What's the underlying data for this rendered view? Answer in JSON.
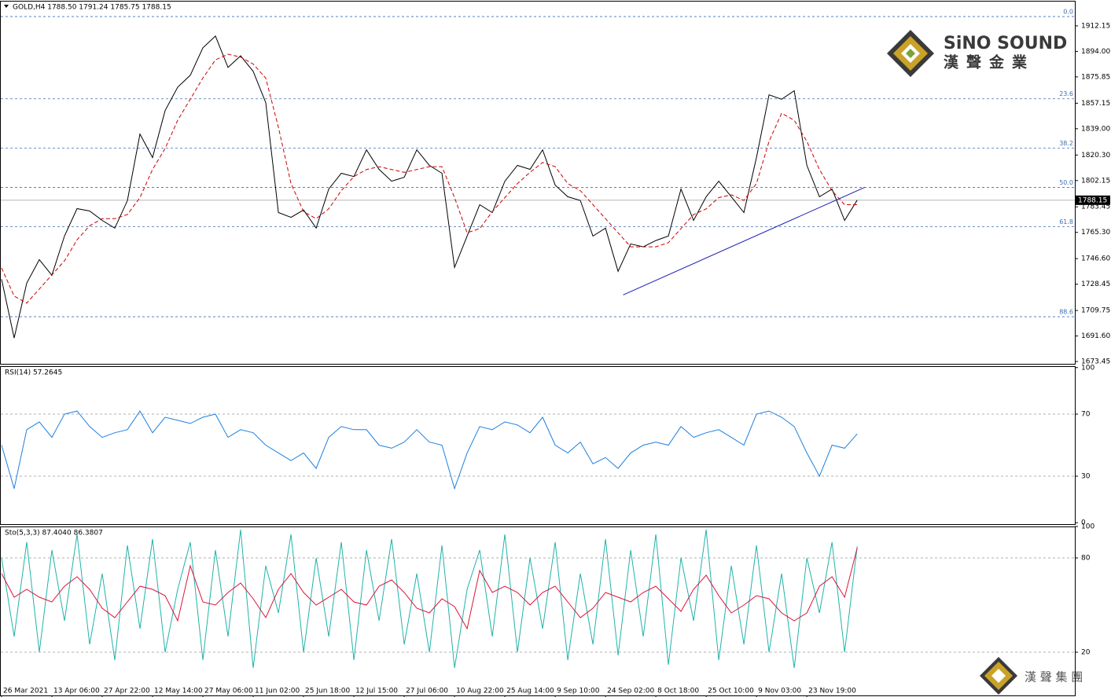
{
  "chart_data": [
    {
      "type": "line",
      "title": "GOLD,H4  1788.50 1791.24 1785.75 1788.15",
      "xlim": [
        -0.125,
        85.3
      ],
      "ylim": [
        1671.8,
        1930.0
      ],
      "yticks": [
        {
          "value": 1912.15,
          "label": "1912.15"
        },
        {
          "value": 1894.0,
          "label": "1894.00"
        },
        {
          "value": 1875.85,
          "label": "1875.85"
        },
        {
          "value": 1857.15,
          "label": "1857.15"
        },
        {
          "value": 1839.0,
          "label": "1839.00"
        },
        {
          "value": 1820.3,
          "label": "1820.30"
        },
        {
          "value": 1802.15,
          "label": "1802.15"
        },
        {
          "value": 1783.45,
          "label": "1783.45"
        },
        {
          "value": 1765.3,
          "label": "1765.30"
        },
        {
          "value": 1746.6,
          "label": "1746.60"
        },
        {
          "value": 1728.45,
          "label": "1728.45"
        },
        {
          "value": 1709.75,
          "label": "1709.75"
        },
        {
          "value": 1691.6,
          "label": "1691.60"
        },
        {
          "value": 1673.45,
          "label": "1673.45"
        }
      ],
      "series": [
        {
          "color": "#000000",
          "values": [
            1732.0,
            1690.2,
            1729.2,
            1745.9,
            1734.8,
            1762.7,
            1782.2,
            1780.5,
            1773.8,
            1768.3,
            1787.8,
            1835.2,
            1818.5,
            1851.9,
            1868.6,
            1877.0,
            1896.5,
            1904.9,
            1882.6,
            1890.9,
            1879.8,
            1857.5,
            1779.4,
            1776.0,
            1781.2,
            1768.3,
            1796.1,
            1807.3,
            1805.0,
            1824.0,
            1810.1,
            1801.7,
            1804.5,
            1824.0,
            1812.9,
            1807.3,
            1740.4,
            1762.7,
            1785.0,
            1779.4,
            1801.7,
            1812.9,
            1810.1,
            1824.0,
            1798.9,
            1790.6,
            1788.0,
            1762.7,
            1768.3,
            1737.6,
            1757.1,
            1755.0,
            1759.5,
            1762.7,
            1796.1,
            1773.8,
            1790.6,
            1801.7,
            1790.6,
            1779.4,
            1818.5,
            1863.1,
            1860.0,
            1866.0,
            1812.9,
            1790.6,
            1796.1,
            1773.8,
            1788.2
          ]
        },
        {
          "color": "#cc0000",
          "dash": true,
          "values": [
            1740,
            1720,
            1715,
            1725,
            1735,
            1745,
            1760,
            1770,
            1775,
            1775,
            1778,
            1790,
            1810,
            1825,
            1845,
            1860,
            1875,
            1888,
            1892,
            1890,
            1885,
            1875,
            1840,
            1800,
            1780,
            1775,
            1782,
            1795,
            1805,
            1810,
            1812,
            1810,
            1808,
            1810,
            1812,
            1812,
            1790,
            1765,
            1768,
            1780,
            1790,
            1800,
            1808,
            1815,
            1812,
            1800,
            1795,
            1785,
            1775,
            1765,
            1755,
            1755,
            1755,
            1758,
            1768,
            1778,
            1782,
            1790,
            1792,
            1788,
            1800,
            1830,
            1850,
            1845,
            1830,
            1810,
            1795,
            1785,
            1785
          ]
        }
      ],
      "levels": [
        {
          "label": "0.0",
          "value": 1918.8
        },
        {
          "label": "23.6",
          "value": 1860.3
        },
        {
          "label": "38.2",
          "value": 1825.2
        },
        {
          "label": "50.0",
          "value": 1797.3
        },
        {
          "label": "61.8",
          "value": 1769.4
        },
        {
          "label": "88.6",
          "value": 1705.3
        }
      ],
      "level_color": "#3f6fb5",
      "trendline": {
        "x": [
          49.4,
          68.6
        ],
        "values": [
          1720.8,
          1797.3
        ],
        "color": "#1c1cb4"
      },
      "last_price": 1788.15,
      "brand": {
        "name": "SiNO SOUND",
        "chinese": "漢聲金業",
        "footer": "漢 聲 集 團"
      }
    },
    {
      "type": "line",
      "title": "RSI(14) 57.2645",
      "xlim": [
        -0.125,
        85.3
      ],
      "ylim": [
        -0.9,
        100.9
      ],
      "yticks": [
        0,
        30,
        70,
        100
      ],
      "levels": [
        30,
        70
      ],
      "series": [
        {
          "color": "#1e7fe0",
          "values": [
            50,
            22,
            60,
            65,
            55,
            70,
            72,
            62,
            55,
            58,
            60,
            72,
            58,
            68,
            66,
            64,
            68,
            70,
            55,
            60,
            58,
            50,
            45,
            40,
            45,
            35,
            55,
            62,
            60,
            60,
            50,
            48,
            52,
            60,
            52,
            50,
            22,
            45,
            62,
            60,
            65,
            63,
            58,
            68,
            50,
            45,
            52,
            38,
            42,
            35,
            45,
            50,
            52,
            50,
            62,
            55,
            58,
            60,
            55,
            50,
            70,
            72,
            68,
            62,
            45,
            30,
            50,
            48,
            57.2645
          ]
        }
      ]
    },
    {
      "type": "line",
      "title": "Sto(5,3,3) 87.4040 86.3807",
      "xlim": [
        -0.125,
        85.3
      ],
      "ylim": [
        -7.5,
        100
      ],
      "yticks": [
        20,
        80,
        100
      ],
      "levels": [
        20,
        80
      ],
      "categories": [
        "26 Mar 2021",
        null,
        null,
        null,
        "13 Apr 06:00",
        null,
        null,
        null,
        "27 Apr 22:00",
        null,
        null,
        null,
        "12 May 14:00",
        null,
        null,
        null,
        "27 May 06:00",
        null,
        null,
        null,
        "11 Jun 02:00",
        null,
        null,
        null,
        "25 Jun 18:00",
        null,
        null,
        null,
        "12 Jul 15:00",
        null,
        null,
        null,
        "27 Jul 06:00",
        null,
        null,
        null,
        "10 Aug 22:00",
        null,
        null,
        null,
        "25 Aug 14:00",
        null,
        null,
        null,
        "9 Sep 10:00",
        null,
        null,
        null,
        "24 Sep 02:00",
        null,
        null,
        null,
        "8 Oct 18:00",
        null,
        null,
        null,
        "25 Oct 10:00",
        null,
        null,
        null,
        "9 Nov 03:00",
        null,
        null,
        null,
        "23 Nov 19:00",
        null,
        null,
        null,
        null
      ],
      "series": [
        {
          "color": "#20b2aa",
          "values": [
            80,
            30,
            90,
            20,
            85,
            40,
            95,
            25,
            70,
            15,
            88,
            35,
            92,
            20,
            60,
            90,
            15,
            85,
            30,
            98,
            10,
            75,
            45,
            95,
            20,
            80,
            30,
            90,
            15,
            85,
            40,
            92,
            25,
            70,
            20,
            88,
            10,
            60,
            85,
            30,
            95,
            20,
            80,
            35,
            90,
            15,
            70,
            25,
            92,
            18,
            85,
            30,
            95,
            12,
            80,
            40,
            98,
            15,
            75,
            25,
            88,
            20,
            70,
            10,
            80,
            45,
            90,
            20,
            87.404
          ]
        },
        {
          "color": "#dc143c",
          "values": [
            70,
            55,
            60,
            55,
            52,
            62,
            68,
            60,
            48,
            42,
            52,
            62,
            60,
            56,
            40,
            75,
            52,
            50,
            58,
            64,
            54,
            42,
            60,
            70,
            58,
            50,
            55,
            60,
            52,
            50,
            62,
            66,
            58,
            48,
            45,
            54,
            49,
            35,
            72,
            58,
            62,
            58,
            50,
            58,
            62,
            52,
            42,
            48,
            58,
            55,
            52,
            58,
            62,
            54,
            46,
            60,
            69,
            56,
            45,
            50,
            56,
            54,
            45,
            40,
            45,
            62,
            68,
            55,
            86.3807
          ]
        }
      ]
    }
  ]
}
